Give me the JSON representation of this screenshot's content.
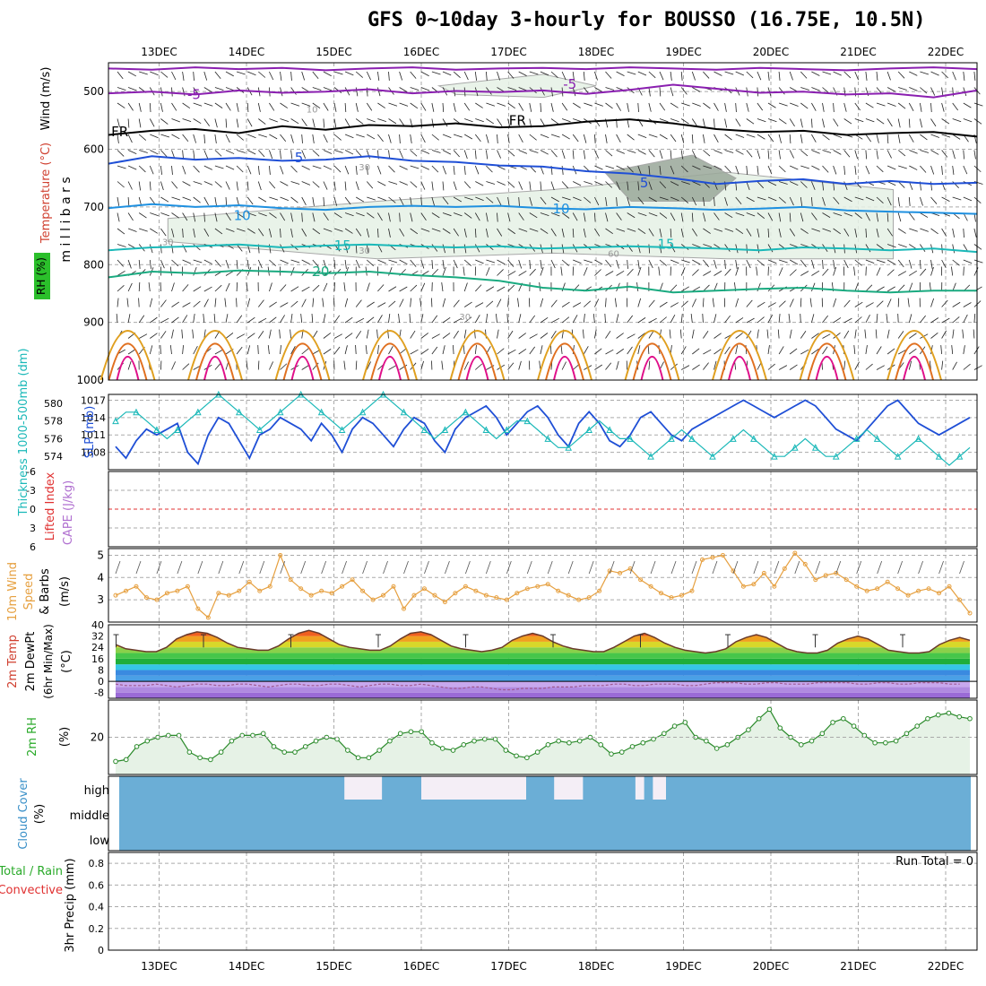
{
  "title": "GFS 0~10day 3-hourly for BOUSSO (16.75E, 10.5N)",
  "colors": {
    "purple": "#8a1fb0",
    "black": "#000000",
    "blue": "#1f4fd6",
    "lightblue": "#1e90e0",
    "teal": "#1ab8b8",
    "green": "#1aaa80",
    "orange": "#e0a020",
    "darkorange": "#e07020",
    "magenta": "#e0108a",
    "rh_fill": "#e6f2e6",
    "rh_dark": "#9aa89a",
    "cloud": "#6baed6",
    "wind": "#e6a040",
    "red": "#e03030"
  },
  "chart_data": [
    {
      "name": "upper-air",
      "type": "line",
      "xticks": [
        "13DEC",
        "14DEC",
        "15DEC",
        "16DEC",
        "17DEC",
        "18DEC",
        "19DEC",
        "20DEC",
        "21DEC",
        "22DEC"
      ],
      "ylabel_parts": {
        "wind": "Wind (m/s)",
        "temp": "Temperature (°C)",
        "rh": "RH (%)",
        "unit": "m i l l i b a r s"
      },
      "yticks": [
        500,
        600,
        700,
        800,
        900,
        1000
      ],
      "ylim": [
        450,
        1000
      ],
      "isotherm_labels": [
        {
          "label": "-5",
          "x_day": 1.4,
          "p": 505
        },
        {
          "label": "-5",
          "x_day": 5.7,
          "p": 487
        },
        {
          "label": "FR",
          "x_day": 0.55,
          "p": 570
        },
        {
          "label": "FR",
          "x_day": 5.1,
          "p": 550
        },
        {
          "label": "5",
          "x_day": 2.6,
          "p": 615
        },
        {
          "label": "5",
          "x_day": 6.55,
          "p": 658
        },
        {
          "label": "10",
          "x_day": 1.95,
          "p": 715
        },
        {
          "label": "10",
          "x_day": 5.6,
          "p": 703
        },
        {
          "label": "15",
          "x_day": 3.1,
          "p": 767
        },
        {
          "label": "15",
          "x_day": 6.8,
          "p": 765
        },
        {
          "label": "20",
          "x_day": 2.85,
          "p": 812
        }
      ],
      "rh_labels": [
        {
          "label": "10",
          "x_day": 2.75,
          "p": 530
        },
        {
          "label": "30",
          "x_day": 3.35,
          "p": 630
        },
        {
          "label": "30",
          "x_day": 1.1,
          "p": 760
        },
        {
          "label": "30",
          "x_day": 3.35,
          "p": 775
        },
        {
          "label": "30",
          "x_day": 4.5,
          "p": 890
        },
        {
          "label": "60",
          "x_day": 6.2,
          "p": 780
        }
      ],
      "series": [
        {
          "color_key": "purple",
          "p": [
            460,
            462,
            458,
            461,
            459,
            463,
            460,
            458,
            462,
            460,
            459,
            461,
            458,
            460,
            462,
            459,
            461,
            463,
            460,
            458,
            461
          ]
        },
        {
          "color_key": "purple",
          "p": [
            503,
            500,
            505,
            498,
            502,
            500,
            496,
            503,
            499,
            501,
            498,
            504,
            497,
            488,
            495,
            502,
            500,
            505,
            503,
            510,
            498
          ]
        },
        {
          "color_key": "black",
          "p": [
            575,
            568,
            565,
            572,
            560,
            566,
            558,
            560,
            555,
            562,
            560,
            552,
            548,
            555,
            565,
            570,
            568,
            575,
            572,
            570,
            578
          ]
        },
        {
          "color_key": "blue",
          "p": [
            625,
            612,
            618,
            615,
            620,
            618,
            612,
            620,
            622,
            628,
            630,
            638,
            642,
            650,
            660,
            655,
            652,
            660,
            655,
            660,
            658
          ]
        },
        {
          "color_key": "lightblue",
          "p": [
            702,
            695,
            700,
            697,
            702,
            705,
            700,
            698,
            700,
            698,
            702,
            704,
            700,
            702,
            705,
            703,
            700,
            706,
            708,
            710,
            712
          ]
        },
        {
          "color_key": "teal",
          "p": [
            775,
            770,
            768,
            765,
            770,
            767,
            765,
            768,
            770,
            768,
            772,
            770,
            768,
            770,
            772,
            775,
            770,
            772,
            775,
            772,
            778
          ]
        },
        {
          "color_key": "green",
          "p": [
            822,
            812,
            815,
            810,
            812,
            815,
            812,
            818,
            822,
            828,
            840,
            845,
            838,
            848,
            845,
            842,
            840,
            845,
            848,
            845,
            845
          ]
        }
      ],
      "rh_regions": [
        {
          "points": [
            [
              1.1,
              720
            ],
            [
              3.5,
              690
            ],
            [
              5.5,
              670
            ],
            [
              7.5,
              640
            ],
            [
              9.4,
              670
            ],
            [
              9.4,
              790
            ],
            [
              7.5,
              790
            ],
            [
              5.5,
              780
            ],
            [
              3.5,
              790
            ],
            [
              1.1,
              760
            ]
          ],
          "shade": "rh_fill"
        },
        {
          "points": [
            [
              6.1,
              640
            ],
            [
              7.1,
              610
            ],
            [
              7.6,
              650
            ],
            [
              7.3,
              690
            ],
            [
              6.4,
              690
            ]
          ],
          "shade": "rh_dark"
        },
        {
          "points": [
            [
              4.2,
              490
            ],
            [
              5.4,
              470
            ],
            [
              6.0,
              490
            ],
            [
              5.4,
              510
            ],
            [
              4.4,
              505
            ]
          ],
          "shade": "rh_fill"
        }
      ]
    },
    {
      "name": "thickness-slp",
      "type": "line",
      "ylabel_left": "Thickness 1000-500mb (dm)",
      "ylabel_right": "SLP (mb)",
      "left_ticks": [
        574,
        576,
        578,
        580
      ],
      "right_ticks": [
        1008,
        1011,
        1014,
        1017
      ],
      "series": [
        {
          "name": "SLP",
          "color_key": "blue",
          "values": [
            1009,
            1007,
            1010,
            1012,
            1011,
            1012,
            1013,
            1008,
            1006,
            1011,
            1014,
            1013,
            1010,
            1007,
            1011,
            1012,
            1014,
            1013,
            1012,
            1010,
            1013,
            1011,
            1008,
            1012,
            1014,
            1013,
            1011,
            1009,
            1012,
            1014,
            1013,
            1010,
            1008,
            1012,
            1014,
            1015,
            1016,
            1014,
            1011,
            1013,
            1015,
            1016,
            1014,
            1011,
            1009,
            1013,
            1015,
            1013,
            1010,
            1009,
            1011,
            1014,
            1015,
            1013,
            1011,
            1010,
            1012,
            1013,
            1014,
            1015,
            1016,
            1017,
            1016,
            1015,
            1014,
            1015,
            1016,
            1017,
            1016,
            1014,
            1012,
            1011,
            1010,
            1012,
            1014,
            1016,
            1017,
            1015,
            1013,
            1012,
            1011,
            1012,
            1013,
            1014
          ]
        },
        {
          "name": "Thickness",
          "color_key": "teal",
          "values": [
            578,
            579,
            579,
            578,
            577,
            576,
            577,
            578,
            579,
            580,
            581,
            580,
            579,
            578,
            577,
            578,
            579,
            580,
            581,
            580,
            579,
            578,
            577,
            578,
            579,
            580,
            581,
            580,
            579,
            578,
            577,
            576,
            577,
            578,
            579,
            578,
            577,
            576,
            577,
            578,
            578,
            577,
            576,
            575,
            575,
            576,
            577,
            578,
            577,
            576,
            576,
            575,
            574,
            575,
            576,
            577,
            576,
            575,
            574,
            575,
            576,
            577,
            576,
            575,
            574,
            574,
            575,
            576,
            575,
            574,
            574,
            575,
            576,
            577,
            576,
            575,
            574,
            575,
            576,
            575,
            574,
            573,
            574,
            575
          ]
        }
      ]
    },
    {
      "name": "li-cape",
      "type": "line",
      "ylabel": "Lifted Index",
      "ylabel2": "CAPE (J/kg)",
      "yticks_labels": [
        "-6",
        "-3",
        "0",
        "3",
        "6"
      ],
      "values": []
    },
    {
      "name": "wind10m",
      "type": "line",
      "ylabel": "10m Wind Speed & Barbs (m/s)",
      "ylabel_parts": {
        "a": "10m Wind",
        "b": "Speed",
        "c": "& Barbs",
        "unit": "(m/s)"
      },
      "yticks": [
        3,
        4,
        5
      ],
      "ylim": [
        2,
        5.3
      ],
      "values": [
        3.2,
        3.4,
        3.6,
        3.1,
        3.0,
        3.3,
        3.4,
        3.6,
        2.6,
        2.2,
        3.3,
        3.2,
        3.4,
        3.8,
        3.4,
        3.6,
        5.0,
        3.9,
        3.5,
        3.2,
        3.4,
        3.3,
        3.6,
        3.9,
        3.4,
        3.0,
        3.2,
        3.6,
        2.6,
        3.2,
        3.5,
        3.2,
        2.9,
        3.3,
        3.6,
        3.4,
        3.2,
        3.1,
        3.0,
        3.3,
        3.5,
        3.6,
        3.7,
        3.4,
        3.2,
        3.0,
        3.1,
        3.4,
        4.3,
        4.2,
        4.4,
        3.9,
        3.6,
        3.3,
        3.1,
        3.2,
        3.4,
        4.8,
        4.9,
        5.0,
        4.3,
        3.6,
        3.7,
        4.2,
        3.6,
        4.4,
        5.1,
        4.6,
        3.9,
        4.1,
        4.2,
        3.9,
        3.6,
        3.4,
        3.5,
        3.8,
        3.5,
        3.2,
        3.4,
        3.5,
        3.3,
        3.6,
        3.0,
        2.4
      ]
    },
    {
      "name": "temperature2m",
      "type": "area",
      "ylabel_parts": {
        "a": "2m Temp",
        "b": "2m DewPt",
        "c": "(6hr Min/Max)",
        "unit": "(°C)"
      },
      "yticks": [
        "-8",
        "0",
        "8",
        "16",
        "24",
        "32",
        "40"
      ],
      "ylim": [
        -12,
        40
      ],
      "temp": [
        26,
        23,
        22,
        21,
        21,
        24,
        30,
        33,
        35,
        34,
        31,
        27,
        24,
        23,
        22,
        22,
        25,
        30,
        34,
        36,
        34,
        30,
        26,
        24,
        23,
        22,
        22,
        25,
        30,
        34,
        35,
        33,
        29,
        25,
        23,
        22,
        21,
        22,
        24,
        29,
        32,
        34,
        32,
        28,
        25,
        23,
        22,
        21,
        21,
        24,
        28,
        32,
        34,
        31,
        27,
        24,
        22,
        21,
        20,
        21,
        23,
        28,
        31,
        33,
        31,
        27,
        23,
        21,
        20,
        20,
        22,
        27,
        30,
        32,
        30,
        26,
        22,
        21,
        20,
        20,
        21,
        26,
        29,
        31,
        29
      ],
      "dewpoint": [
        -2,
        -3,
        -3,
        -3,
        -2,
        -3,
        -4,
        -3,
        -2,
        -2,
        -3,
        -3,
        -2,
        -2,
        -3,
        -4,
        -3,
        -2,
        -2,
        -3,
        -3,
        -2,
        -2,
        -3,
        -4,
        -3,
        -2,
        -2,
        -3,
        -3,
        -2,
        -3,
        -4,
        -5,
        -5,
        -4,
        -4,
        -5,
        -6,
        -6,
        -5,
        -5,
        -5,
        -4,
        -4,
        -4,
        -3,
        -3,
        -3,
        -2,
        -2,
        -3,
        -3,
        -2,
        -2,
        -2,
        -3,
        -3,
        -2,
        -1,
        -1,
        -1,
        -2,
        -2,
        -1,
        -1,
        -2,
        -2,
        -2,
        -1,
        -1,
        -1,
        -1,
        -2,
        -2,
        -1,
        -1,
        -2,
        -2,
        -1,
        -1,
        -1,
        -2,
        -2
      ]
    },
    {
      "name": "rh2m",
      "type": "area",
      "ylabel": "2m RH",
      "unit": "(%)",
      "yticks": [
        20
      ],
      "ylim": [
        0,
        40
      ],
      "values": [
        7,
        8,
        15,
        18,
        20,
        21,
        21,
        12,
        9,
        8,
        12,
        18,
        21,
        21,
        22,
        15,
        12,
        12,
        15,
        18,
        20,
        19,
        13,
        9,
        9,
        13,
        18,
        22,
        23,
        23,
        17,
        14,
        13,
        16,
        18,
        19,
        19,
        13,
        10,
        9,
        12,
        16,
        18,
        17,
        18,
        20,
        16,
        11,
        12,
        15,
        17,
        19,
        22,
        26,
        28,
        20,
        18,
        14,
        16,
        20,
        24,
        30,
        35,
        25,
        20,
        16,
        18,
        22,
        28,
        30,
        26,
        21,
        17,
        17,
        18,
        22,
        26,
        30,
        32,
        33,
        31,
        30
      ]
    },
    {
      "name": "cloud",
      "type": "area",
      "ylabel": "Cloud Cover (%)",
      "ylabel_parts": {
        "a": "Cloud Cover",
        "b": "(%)"
      },
      "row_labels": [
        "high",
        "middle",
        "low"
      ],
      "high_gaps": [
        [
          3.12,
          3.55
        ],
        [
          4.0,
          4.6
        ],
        [
          4.6,
          5.2
        ],
        [
          5.52,
          5.85
        ],
        [
          6.45,
          6.55
        ],
        [
          6.65,
          6.8
        ]
      ]
    },
    {
      "name": "precip",
      "type": "bar",
      "ylabel_parts": {
        "a": "3hr Precip (mm)",
        "b": "Total / Rain",
        "c": "Convective"
      },
      "run_total": "Run Total = 0",
      "yticks": [
        "0",
        "0.2",
        "0.4",
        "0.6",
        "0.8"
      ],
      "ylim": [
        0,
        0.9
      ],
      "values": []
    }
  ]
}
